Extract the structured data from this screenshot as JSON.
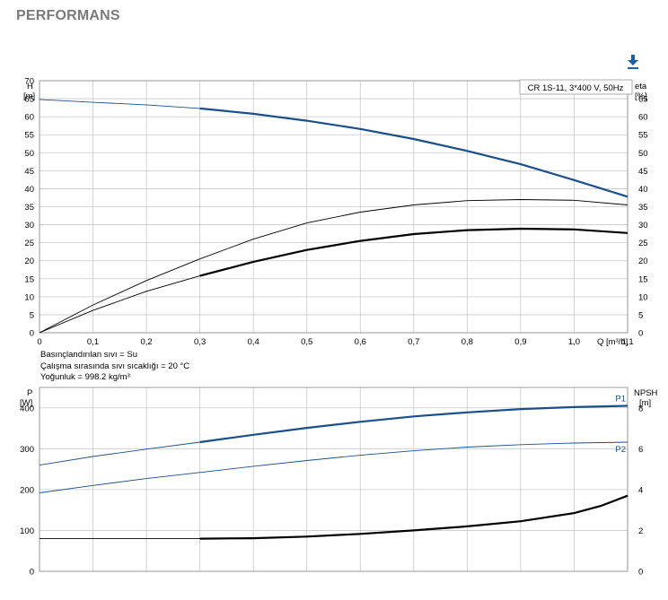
{
  "header": {
    "title": "PERFORMANS"
  },
  "toolbar": {
    "download_icon": "download-arrow-icon"
  },
  "fluid_info": {
    "line1": "Basınçlandırılan sıvı = Su",
    "line2": "Çalışma sırasında sıvı sıcaklığı = 20 °C",
    "line3": "Yoğunluk = 998.2 kg/m³"
  },
  "colors": {
    "curve_blue": "#1a4f8a",
    "curve_black": "#000000",
    "grid": "#c8c8c8"
  },
  "chart_data": [
    {
      "type": "line",
      "legend_box": "CR 1S-11, 3*400 V, 50Hz",
      "x_unit_label": "Q [m³/h]",
      "xlim": [
        0,
        1.1
      ],
      "x_ticks": [
        "0",
        "0,1",
        "0,2",
        "0,3",
        "0,4",
        "0,5",
        "0,6",
        "0,7",
        "0,8",
        "0,9",
        "1,0",
        "1,1"
      ],
      "y_left_label": "H",
      "y_left_unit": "[m]",
      "y_right_label": "eta",
      "y_right_unit": "[%]",
      "ylim": [
        0,
        70
      ],
      "y_left_ticks": [
        "0",
        "5",
        "10",
        "15",
        "20",
        "25",
        "30",
        "35",
        "40",
        "45",
        "50",
        "55",
        "60",
        "65",
        "70"
      ],
      "y_right_ticks": [
        "0",
        "5",
        "10",
        "15",
        "20",
        "25",
        "30",
        "35",
        "40",
        "45",
        "50",
        "55",
        "60",
        "65"
      ],
      "grid": true,
      "series": [
        {
          "color": "#1a4f8a",
          "x": [
            0,
            0.1,
            0.2,
            0.3,
            0.4,
            0.5,
            0.6,
            0.7,
            0.8,
            0.9,
            1.0,
            1.1
          ],
          "y": [
            64.8,
            64.0,
            63.3,
            62.3,
            60.8,
            58.9,
            56.6,
            53.8,
            50.5,
            46.8,
            42.4,
            37.8
          ],
          "solid_from": 0.3
        },
        {
          "color": "#000000",
          "x": [
            0,
            0.1,
            0.2,
            0.3,
            0.4,
            0.5,
            0.6,
            0.7,
            0.8,
            0.9,
            1.0,
            1.1
          ],
          "y": [
            0,
            7.7,
            14.5,
            20.5,
            26.0,
            30.5,
            33.5,
            35.5,
            36.7,
            37.0,
            36.8,
            35.5
          ],
          "solid_from": 1.2
        },
        {
          "color": "#000000",
          "x": [
            0,
            0.1,
            0.2,
            0.3,
            0.4,
            0.5,
            0.6,
            0.7,
            0.8,
            0.9,
            1.0,
            1.1
          ],
          "y": [
            0,
            6.2,
            11.5,
            15.8,
            19.7,
            23.0,
            25.5,
            27.4,
            28.5,
            28.9,
            28.7,
            27.7
          ],
          "solid_from": 0.3
        }
      ]
    },
    {
      "type": "line",
      "xlim": [
        0,
        1.1
      ],
      "y_left_label": "P",
      "y_left_unit": "[W]",
      "y_right_label": "NPSH",
      "y_right_unit": "[m]",
      "ylim_left": [
        0,
        450
      ],
      "ylim_right": [
        0,
        9
      ],
      "y_left_ticks": [
        "0",
        "100",
        "200",
        "300",
        "400"
      ],
      "y_right_ticks": [
        "0",
        "2",
        "4",
        "6",
        "8"
      ],
      "grid": true,
      "series": [
        {
          "name": "P1",
          "axis": "left",
          "color": "#1a4f8a",
          "x": [
            0,
            0.1,
            0.2,
            0.3,
            0.4,
            0.5,
            0.6,
            0.7,
            0.8,
            0.9,
            1.0,
            1.1
          ],
          "y": [
            260,
            281,
            299,
            316,
            334,
            351,
            366,
            379,
            389,
            397,
            402,
            405
          ],
          "solid_from": 0.3
        },
        {
          "name": "P2",
          "axis": "left",
          "color": "#1a4f8a",
          "x": [
            0,
            0.1,
            0.2,
            0.3,
            0.4,
            0.5,
            0.6,
            0.7,
            0.8,
            0.9,
            1.0,
            1.1
          ],
          "y": [
            192,
            210,
            227,
            242,
            257,
            271,
            284,
            295,
            304,
            310,
            314,
            316
          ],
          "solid_from": 1.2
        },
        {
          "axis": "right",
          "color": "#000000",
          "x": [
            0,
            0.1,
            0.2,
            0.3,
            0.4,
            0.5,
            0.6,
            0.7,
            0.8,
            0.9,
            1.0,
            1.05,
            1.1
          ],
          "y": [
            1.6,
            1.6,
            1.6,
            1.6,
            1.62,
            1.7,
            1.83,
            2.0,
            2.2,
            2.45,
            2.85,
            3.2,
            3.7
          ],
          "solid_from": 0.3
        }
      ]
    }
  ]
}
